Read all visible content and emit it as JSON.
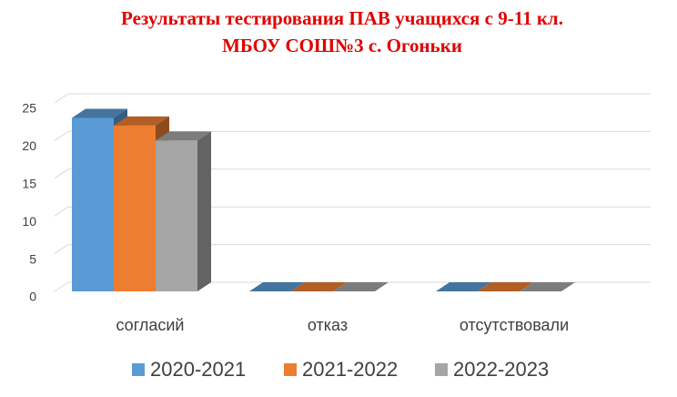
{
  "chart_data": {
    "type": "bar3d",
    "title": [
      "Результаты тестирования ПАВ учащихся с 9-11 кл.",
      "МБОУ СОШ№3 с. Огоньки"
    ],
    "categories": [
      "согласий",
      "отказ",
      "отсутствовали"
    ],
    "series": [
      {
        "name": "2020-2021",
        "color": "#5b9bd5",
        "values": [
          23,
          0,
          0
        ]
      },
      {
        "name": "2021-2022",
        "color": "#ed7d31",
        "values": [
          22,
          0,
          0
        ]
      },
      {
        "name": "2022-2023",
        "color": "#a5a5a5",
        "values": [
          20,
          0,
          0
        ]
      }
    ],
    "ylim": [
      0,
      25
    ],
    "yticks": [
      0,
      5,
      10,
      15,
      20,
      25
    ],
    "grid": true,
    "legend": "bottom"
  }
}
